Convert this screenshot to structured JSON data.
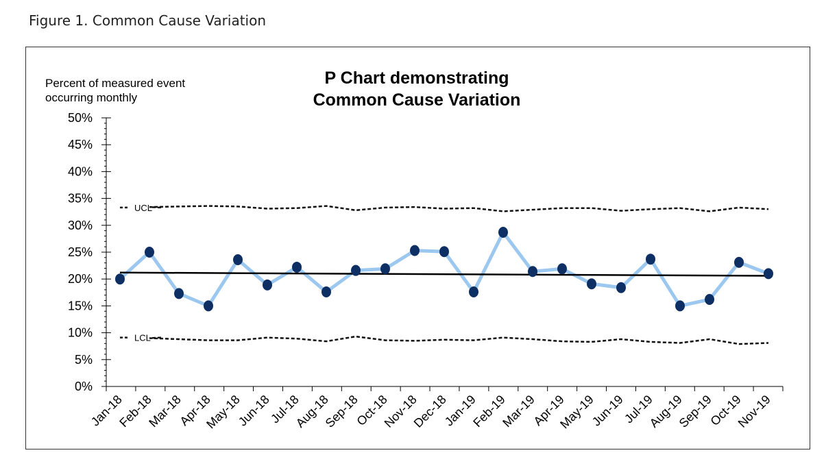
{
  "figure_caption": "Figure 1. Common Cause Variation",
  "chart_data": {
    "type": "line",
    "title_line1": "P Chart demonstrating",
    "title_line2": "Common Cause Variation",
    "ylabel_line1": "Percent of measured event",
    "ylabel_line2": "occurring monthly",
    "ylim": [
      0,
      50
    ],
    "yticks": [
      "0%",
      "5%",
      "10%",
      "15%",
      "20%",
      "25%",
      "30%",
      "35%",
      "40%",
      "45%",
      "50%"
    ],
    "categories": [
      "Jan-18",
      "Feb-18",
      "Mar-18",
      "Apr-18",
      "May-18",
      "Jun-18",
      "Jul-18",
      "Aug-18",
      "Sep-18",
      "Oct-18",
      "Nov-18",
      "Dec-18",
      "Jan-19",
      "Feb-19",
      "Mar-19",
      "Apr-19",
      "May-19",
      "Jun-19",
      "Jul-19",
      "Aug-19",
      "Sep-19",
      "Oct-19",
      "Nov-19"
    ],
    "series": [
      {
        "values": [
          20.0,
          25.0,
          17.3,
          15.0,
          23.6,
          18.9,
          22.2,
          17.6,
          21.6,
          21.9,
          25.3,
          25.1,
          17.6,
          28.7,
          21.4,
          21.9,
          19.1,
          18.4,
          23.7,
          15.0,
          16.2,
          23.1,
          21.0
        ],
        "line_color": "#9cc8f0",
        "marker_color": "#0d2f63"
      }
    ],
    "center_line": {
      "start": 21.2,
      "end": 20.6,
      "color": "#000000"
    },
    "ucl": {
      "label": "UCL",
      "values": [
        33.3,
        33.4,
        33.5,
        33.6,
        33.5,
        33.1,
        33.2,
        33.6,
        32.8,
        33.3,
        33.4,
        33.1,
        33.2,
        32.6,
        32.9,
        33.2,
        33.2,
        32.7,
        33.0,
        33.2,
        32.6,
        33.3,
        33.0
      ]
    },
    "lcl": {
      "label": "LCL",
      "values": [
        9.1,
        9.0,
        8.8,
        8.6,
        8.6,
        9.1,
        8.9,
        8.4,
        9.3,
        8.6,
        8.5,
        8.7,
        8.6,
        9.1,
        8.8,
        8.4,
        8.3,
        8.8,
        8.3,
        8.1,
        8.8,
        7.9,
        8.1
      ]
    },
    "grid": false,
    "legend": "none"
  }
}
